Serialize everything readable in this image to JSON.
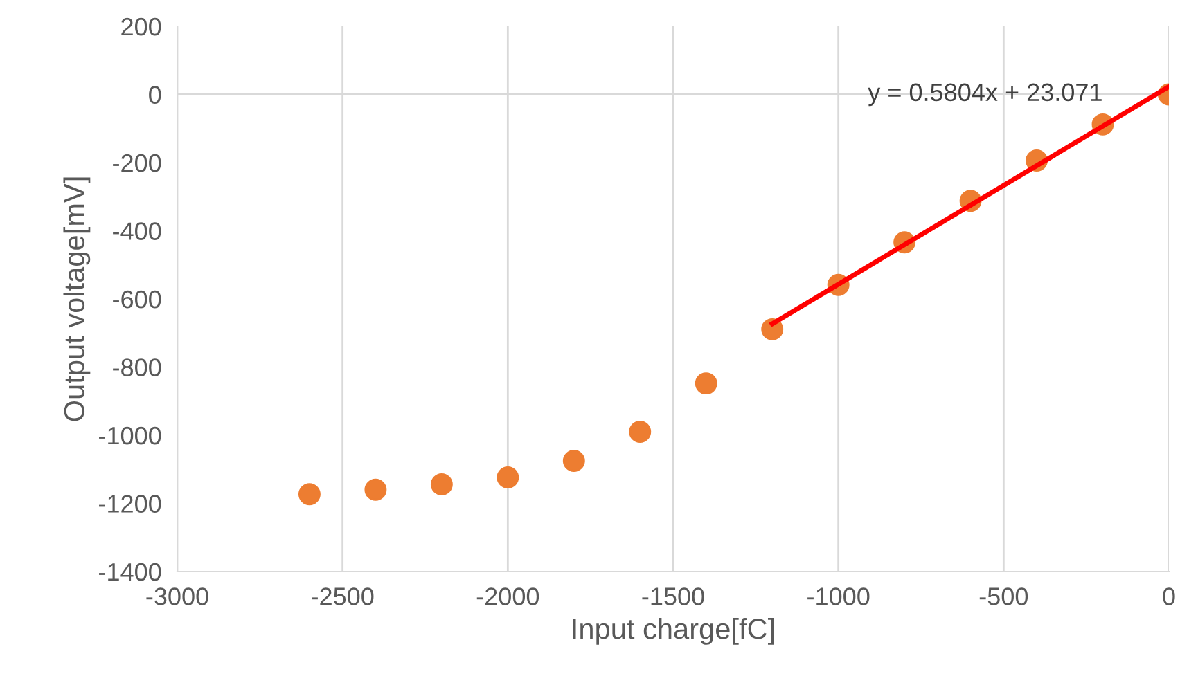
{
  "chart_data": {
    "type": "scatter",
    "xlabel": "Input charge[fC]",
    "ylabel": "Output voltage[mV]",
    "series": [
      {
        "color": "#ed7d31",
        "marker": "circle",
        "x": [
          -2600,
          -2400,
          -2200,
          -2000,
          -1800,
          -1600,
          -1400,
          -1200,
          -1000,
          -800,
          -600,
          -400,
          -200,
          0
        ],
        "values": [
          -1173,
          -1160,
          -1144,
          -1124,
          -1075,
          -990,
          -848,
          -689,
          -559,
          -434,
          -312,
          -194,
          -88,
          0
        ]
      },
      {
        "type": "line",
        "color": "#ff0000",
        "x": [
          -1200,
          0
        ],
        "values": [
          -673,
          23
        ]
      }
    ],
    "annotations": [
      {
        "text": "y = 0.5804x + 23.071",
        "x": -200,
        "y": 0
      }
    ],
    "xlim": [
      -3000,
      0
    ],
    "xticks": [
      -3000,
      -2500,
      -2000,
      -1500,
      -1000,
      -500,
      0
    ],
    "ylim": [
      -1400,
      200
    ],
    "yticks": [
      -1400,
      -1200,
      -1000,
      -800,
      -600,
      -400,
      -200,
      0,
      200
    ],
    "ref_lines": [
      {
        "axis": "y",
        "value": 0,
        "label": null,
        "color": "#d9d9d9"
      }
    ],
    "grid": "x"
  }
}
